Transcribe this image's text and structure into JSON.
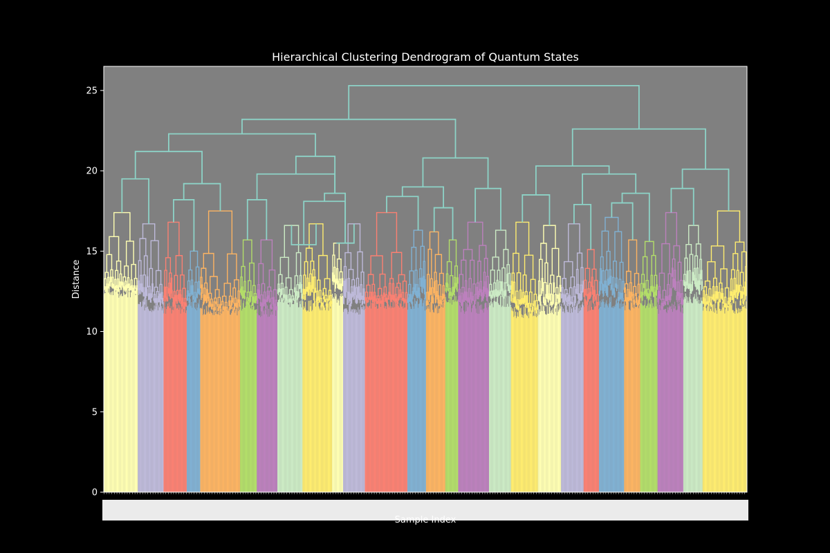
{
  "chart_data": {
    "type": "dendrogram",
    "title": "Hierarchical Clustering Dendrogram of Quantum States",
    "xlabel": "Sample Index",
    "ylabel": "Distance",
    "ylim": [
      0,
      26.5
    ],
    "yticks": [
      0,
      5,
      10,
      15,
      20,
      25
    ],
    "background_color": "#808080",
    "figure_color": "#000000",
    "link_color": "#8dd3c7",
    "cluster_colors": [
      "#ffffb3",
      "#bebada",
      "#fb8072",
      "#80b1d3",
      "#fdb462",
      "#b3de69",
      "#bc80bd",
      "#ccebc5",
      "#ffed6f"
    ],
    "leaf_count": 1000,
    "clusters": [
      {
        "color": "#ffffb3",
        "start": 0,
        "end": 53,
        "height": 17.4,
        "base": 12.1
      },
      {
        "color": "#bebada",
        "start": 53,
        "end": 93,
        "height": 16.7,
        "base": 11.2
      },
      {
        "color": "#fb8072",
        "start": 93,
        "end": 129,
        "height": 16.8,
        "base": 11.1
      },
      {
        "color": "#80b1d3",
        "start": 129,
        "end": 150,
        "height": 15.0,
        "base": 11.3
      },
      {
        "color": "#fdb462",
        "start": 150,
        "end": 212,
        "height": 17.5,
        "base": 11.0
      },
      {
        "color": "#b3de69",
        "start": 212,
        "end": 238,
        "height": 15.7,
        "base": 11.3
      },
      {
        "color": "#bc80bd",
        "start": 238,
        "end": 270,
        "height": 15.7,
        "base": 10.9
      },
      {
        "color": "#ccebc5",
        "start": 270,
        "end": 309,
        "height": 16.6,
        "base": 11.5
      },
      {
        "color": "#ffed6f",
        "start": 309,
        "end": 355,
        "height": 16.7,
        "base": 11.2
      },
      {
        "color": "#ffffb3",
        "start": 355,
        "end": 372,
        "height": 15.5,
        "base": 11.6
      },
      {
        "color": "#bebada",
        "start": 372,
        "end": 406,
        "height": 16.7,
        "base": 11.0
      },
      {
        "color": "#fb8072",
        "start": 406,
        "end": 472,
        "height": 17.4,
        "base": 11.4
      },
      {
        "color": "#80b1d3",
        "start": 472,
        "end": 501,
        "height": 16.3,
        "base": 11.3
      },
      {
        "color": "#fdb462",
        "start": 501,
        "end": 531,
        "height": 16.2,
        "base": 11.1
      },
      {
        "color": "#b3de69",
        "start": 531,
        "end": 551,
        "height": 15.7,
        "base": 11.6
      },
      {
        "color": "#bc80bd",
        "start": 551,
        "end": 599,
        "height": 16.8,
        "base": 11.1
      },
      {
        "color": "#ccebc5",
        "start": 599,
        "end": 633,
        "height": 16.3,
        "base": 11.5
      },
      {
        "color": "#ffed6f",
        "start": 633,
        "end": 675,
        "height": 16.8,
        "base": 10.8
      },
      {
        "color": "#ffffb3",
        "start": 675,
        "end": 711,
        "height": 16.6,
        "base": 11.0
      },
      {
        "color": "#bebada",
        "start": 711,
        "end": 746,
        "height": 16.7,
        "base": 11.1
      },
      {
        "color": "#fb8072",
        "start": 746,
        "end": 770,
        "height": 15.1,
        "base": 11.2
      },
      {
        "color": "#80b1d3",
        "start": 770,
        "end": 809,
        "height": 17.1,
        "base": 11.4
      },
      {
        "color": "#fdb462",
        "start": 809,
        "end": 834,
        "height": 15.7,
        "base": 11.3
      },
      {
        "color": "#b3de69",
        "start": 834,
        "end": 861,
        "height": 15.6,
        "base": 11.4
      },
      {
        "color": "#bc80bd",
        "start": 861,
        "end": 901,
        "height": 17.4,
        "base": 11.1
      },
      {
        "color": "#ccebc5",
        "start": 901,
        "end": 931,
        "height": 16.6,
        "base": 11.7
      },
      {
        "color": "#ffed6f",
        "start": 931,
        "end": 1000,
        "height": 17.5,
        "base": 11.1
      }
    ],
    "merges": [
      {
        "left": {
          "c": 0
        },
        "right": {
          "c": 1
        },
        "height": 19.5
      },
      {
        "left": {
          "c": 2
        },
        "right": {
          "c": 3
        },
        "height": 18.2
      },
      {
        "left": {
          "m": 1
        },
        "right": {
          "c": 4
        },
        "height": 19.2
      },
      {
        "left": {
          "m": 0
        },
        "right": {
          "m": 2
        },
        "height": 21.2
      },
      {
        "left": {
          "c": 5
        },
        "right": {
          "c": 6
        },
        "height": 18.2
      },
      {
        "left": {
          "c": 7
        },
        "right": {
          "c": 8
        },
        "height": 15.4
      },
      {
        "left": {
          "c": 9
        },
        "right": {
          "c": 10
        },
        "height": 15.5
      },
      {
        "left": {
          "m": 5
        },
        "right": {
          "m": 6
        },
        "height": 18.1
      },
      {
        "left": {
          "m": 7
        },
        "right": {
          "m": 6
        },
        "height": 18.6
      },
      {
        "left": {
          "m": 4
        },
        "right": {
          "m": 8
        },
        "height": 19.8
      },
      {
        "left": {
          "m": 9
        },
        "right": {
          "m": 8
        },
        "height": 20.9
      },
      {
        "left": {
          "m": 3
        },
        "right": {
          "m": 10
        },
        "height": 22.3
      },
      {
        "left": {
          "c": 11
        },
        "right": {
          "c": 12
        },
        "height": 18.4
      },
      {
        "left": {
          "c": 13
        },
        "right": {
          "c": 14
        },
        "height": 17.7
      },
      {
        "left": {
          "m": 12
        },
        "right": {
          "m": 13
        },
        "height": 19.0
      },
      {
        "left": {
          "c": 15
        },
        "right": {
          "c": 16
        },
        "height": 18.9
      },
      {
        "left": {
          "m": 14
        },
        "right": {
          "m": 15
        },
        "height": 20.8
      },
      {
        "left": {
          "m": 11
        },
        "right": {
          "m": 16
        },
        "height": 23.2
      },
      {
        "left": {
          "c": 17
        },
        "right": {
          "c": 18
        },
        "height": 18.5
      },
      {
        "left": {
          "c": 19
        },
        "right": {
          "c": 20
        },
        "height": 17.9
      },
      {
        "left": {
          "c": 21
        },
        "right": {
          "c": 22
        },
        "height": 18.0
      },
      {
        "left": {
          "m": 20
        },
        "right": {
          "c": 23
        },
        "height": 18.6
      },
      {
        "left": {
          "m": 19
        },
        "right": {
          "m": 21
        },
        "height": 19.8
      },
      {
        "left": {
          "m": 18
        },
        "right": {
          "m": 22
        },
        "height": 20.3
      },
      {
        "left": {
          "c": 24
        },
        "right": {
          "c": 25
        },
        "height": 18.9
      },
      {
        "left": {
          "m": 24
        },
        "right": {
          "c": 26
        },
        "height": 20.1
      },
      {
        "left": {
          "m": 23
        },
        "right": {
          "m": 25
        },
        "height": 22.6
      },
      {
        "left": {
          "m": 17
        },
        "right": {
          "m": 26
        },
        "height": 25.3
      }
    ]
  }
}
